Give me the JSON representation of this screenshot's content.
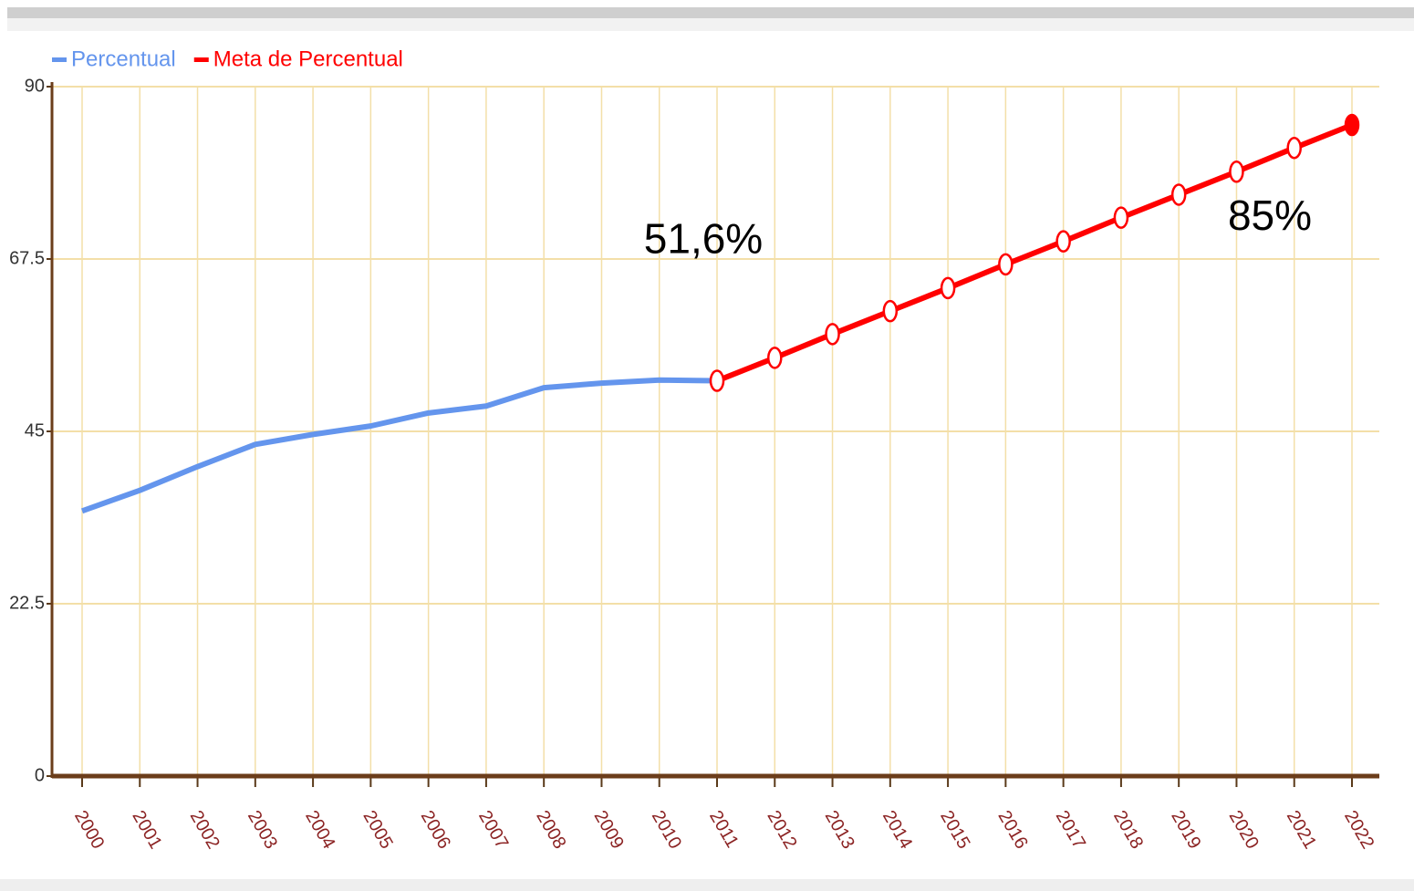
{
  "chart_data": {
    "type": "line",
    "categories": [
      "2000",
      "2001",
      "2002",
      "2003",
      "2004",
      "2005",
      "2006",
      "2007",
      "2008",
      "2009",
      "2010",
      "2011",
      "2012",
      "2013",
      "2014",
      "2015",
      "2016",
      "2017",
      "2018",
      "2019",
      "2020",
      "2021",
      "2022"
    ],
    "series": [
      {
        "name": "Percentual",
        "color": "#6495ed",
        "markers": false,
        "values": [
          34.6,
          37.3,
          40.4,
          43.3,
          44.6,
          45.7,
          47.4,
          48.3,
          50.7,
          51.3,
          51.7,
          51.6,
          null,
          null,
          null,
          null,
          null,
          null,
          null,
          null,
          null,
          null,
          null
        ]
      },
      {
        "name": "Meta de Percentual",
        "color": "#ff0000",
        "markers": true,
        "values": [
          null,
          null,
          null,
          null,
          null,
          null,
          null,
          null,
          null,
          null,
          null,
          51.6,
          54.6,
          57.7,
          60.7,
          63.7,
          66.8,
          69.8,
          72.9,
          75.9,
          78.9,
          82.0,
          85
        ],
        "value_labels": [
          null,
          null,
          null,
          null,
          null,
          null,
          null,
          null,
          null,
          null,
          null,
          "51,6%",
          null,
          null,
          null,
          null,
          null,
          null,
          null,
          null,
          null,
          null,
          "85%"
        ]
      }
    ],
    "ylim": [
      0,
      90
    ],
    "yticks": [
      0,
      22.5,
      45,
      67.5,
      90
    ],
    "grid": true,
    "legend": "top-left"
  }
}
